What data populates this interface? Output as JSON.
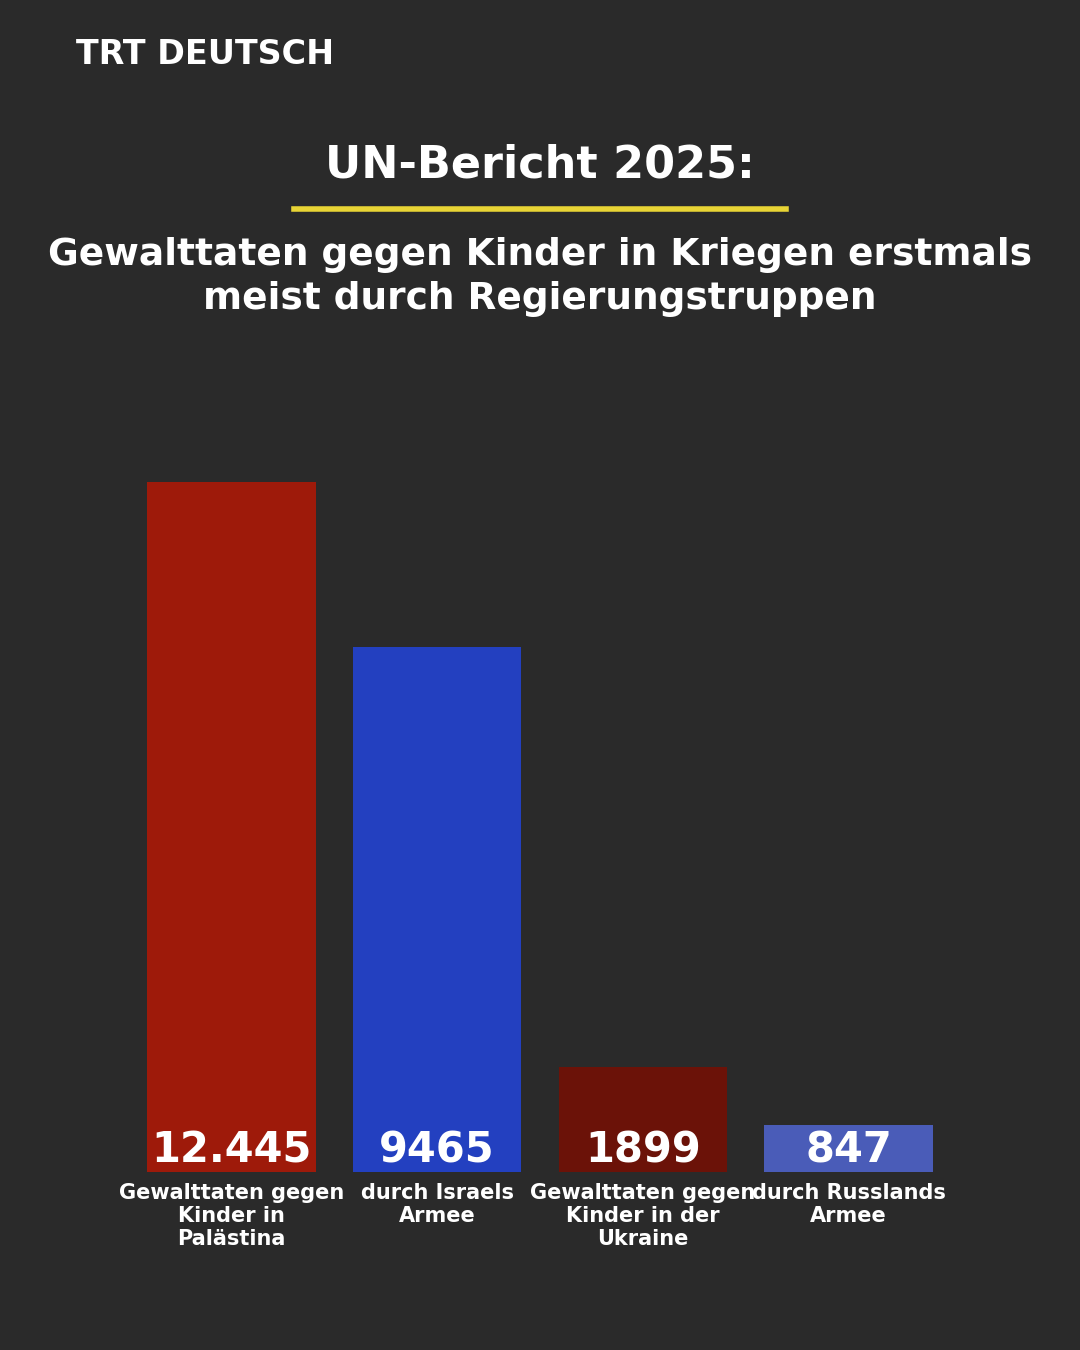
{
  "chart_data": {
    "type": "bar",
    "title": "UN-Bericht 2025:",
    "subtitle": "Gewalttaten gegen Kinder in Kriegen erstmals meist durch Regierungstruppen",
    "annotations": [
      "TRT DEUTSCH"
    ],
    "categories": [
      "Gewalttaten gegen Kinder in Palästina",
      "durch Israels Armee",
      "Gewalttaten gegen Kinder in der Ukraine",
      "durch Russlands Armee"
    ],
    "values": [
      12445,
      9465,
      1899,
      847
    ],
    "value_labels": [
      "12.445",
      "9465",
      "1899",
      "847"
    ],
    "colors": [
      "#9e1a0a",
      "#2340c0",
      "#6b1208",
      "#4a5cb8"
    ],
    "data_labels": true,
    "tick_labels": "x"
  }
}
